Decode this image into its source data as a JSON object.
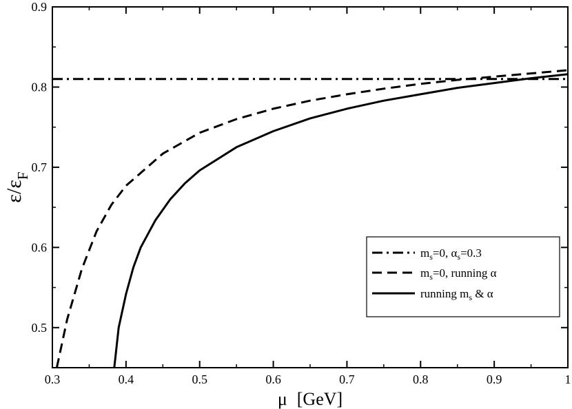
{
  "chart_data": {
    "type": "line",
    "title": "",
    "xlabel": {
      "main": "μ",
      "unit": "[GeV]"
    },
    "ylabel": {
      "num": "ε",
      "den": "ε",
      "den_sub": "F"
    },
    "xlim": [
      0.3,
      1.0
    ],
    "ylim": [
      0.45,
      0.9
    ],
    "xticks": [
      0.3,
      0.4,
      0.5,
      0.6,
      0.7,
      0.8,
      0.9,
      1.0
    ],
    "xtick_labels": [
      "0.3",
      "0.4",
      "0.5",
      "0.6",
      "0.7",
      "0.8",
      "0.9",
      "1"
    ],
    "yticks": [
      0.5,
      0.6,
      0.7,
      0.8,
      0.9
    ],
    "ytick_labels": [
      "0.5",
      "0.6",
      "0.7",
      "0.8",
      "0.9"
    ],
    "grid": false,
    "legend_position": "center-right",
    "series": [
      {
        "name": "ms=0, αs=0.3",
        "legend": {
          "p1": "m",
          "s1": "s",
          "p2": "=0,  α",
          "s2": "s",
          "p3": "=0.3"
        },
        "style": "dashdot",
        "x": [
          0.3,
          1.0
        ],
        "y": [
          0.81,
          0.81
        ]
      },
      {
        "name": "ms=0, running α",
        "legend": {
          "p1": "m",
          "s1": "s",
          "p2": "=0, running  α"
        },
        "style": "dashed",
        "x": [
          0.306,
          0.32,
          0.34,
          0.36,
          0.38,
          0.4,
          0.45,
          0.5,
          0.55,
          0.6,
          0.65,
          0.7,
          0.75,
          0.8,
          0.85,
          0.9,
          0.95,
          1.0
        ],
        "y": [
          0.45,
          0.51,
          0.573,
          0.62,
          0.653,
          0.677,
          0.717,
          0.743,
          0.76,
          0.773,
          0.783,
          0.791,
          0.798,
          0.804,
          0.809,
          0.813,
          0.817,
          0.821
        ]
      },
      {
        "name": "running ms & α",
        "legend": {
          "p1": "running m",
          "s1": "s",
          "p2": " &  α"
        },
        "style": "solid",
        "x": [
          0.384,
          0.39,
          0.4,
          0.41,
          0.42,
          0.44,
          0.46,
          0.48,
          0.5,
          0.55,
          0.6,
          0.65,
          0.7,
          0.75,
          0.8,
          0.85,
          0.9,
          0.95,
          1.0
        ],
        "y": [
          0.45,
          0.5,
          0.542,
          0.575,
          0.6,
          0.634,
          0.66,
          0.68,
          0.696,
          0.725,
          0.745,
          0.761,
          0.773,
          0.783,
          0.791,
          0.799,
          0.805,
          0.811,
          0.816
        ]
      }
    ]
  }
}
